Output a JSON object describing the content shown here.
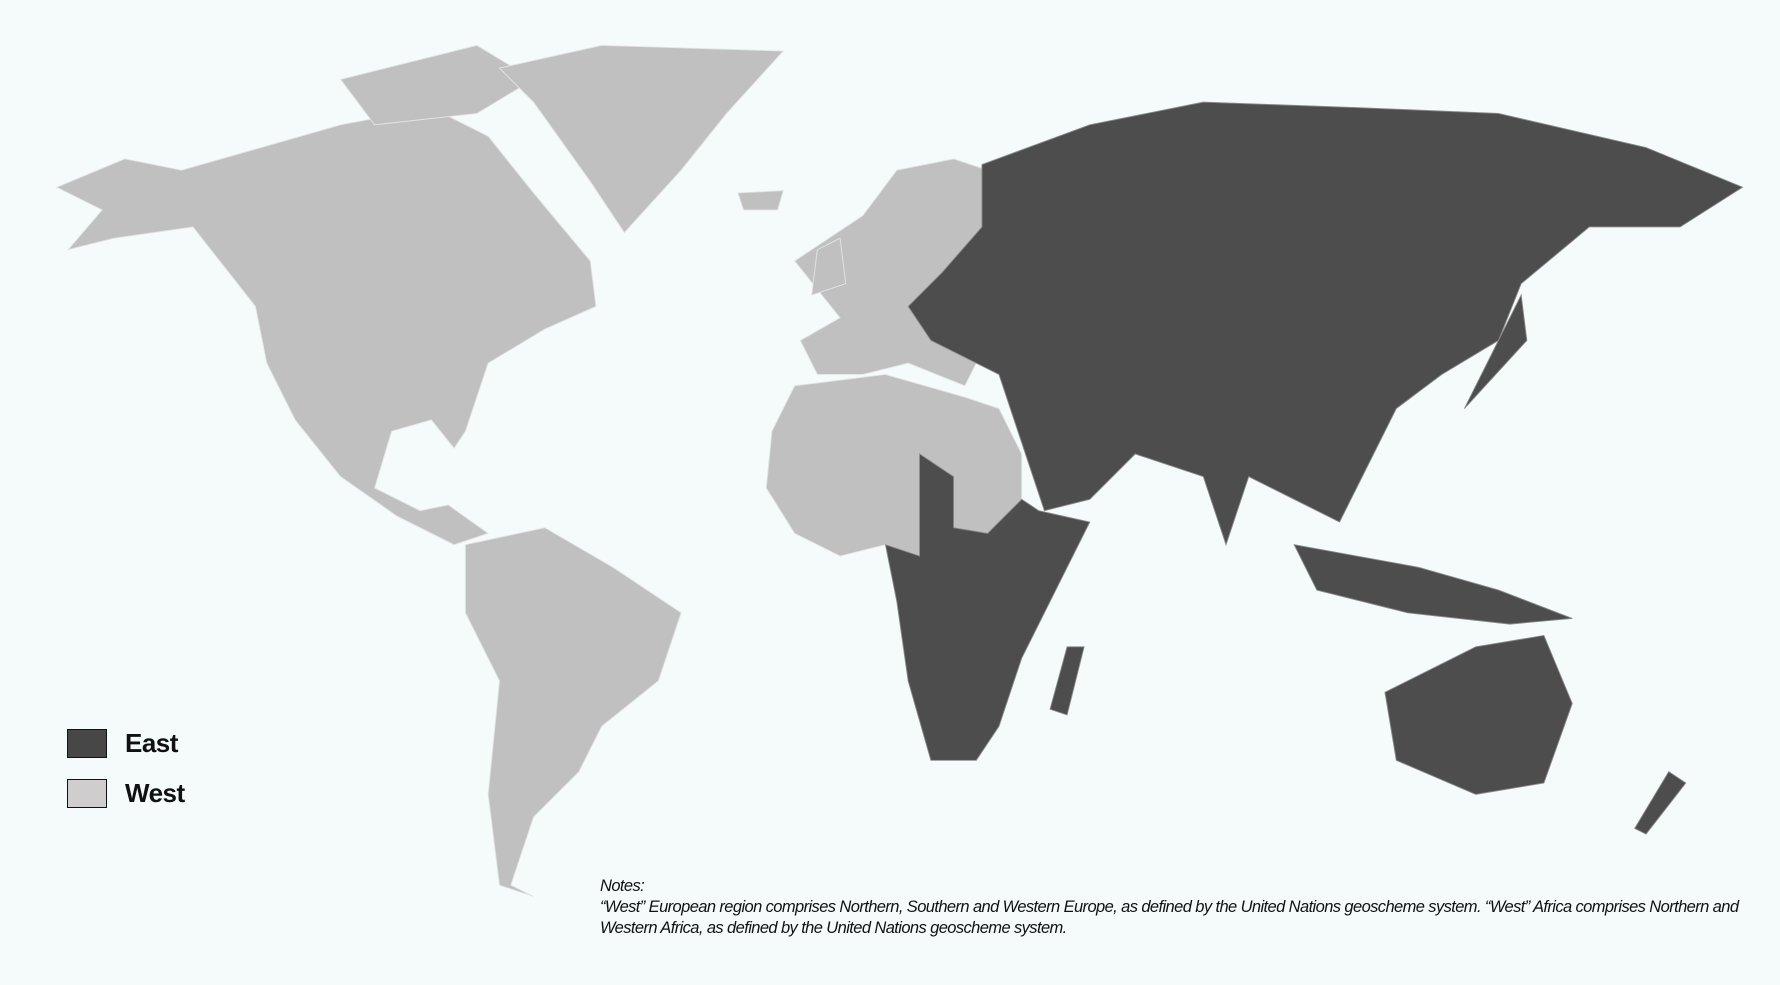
{
  "legend": {
    "items": [
      {
        "label": "East",
        "color": "#474747"
      },
      {
        "label": "West",
        "color": "#d0cdcf"
      }
    ]
  },
  "map": {
    "background": "#f5fbfb",
    "west_fill": "#c0c0c0",
    "east_fill": "#4d4d4d",
    "west_regions": [
      "North America",
      "Greenland",
      "Central America",
      "South America",
      "Northern Europe",
      "Southern Europe",
      "Western Europe",
      "Northern Africa",
      "Western Africa"
    ],
    "east_regions": [
      "Eastern Europe",
      "Russia",
      "Middle East",
      "Central Asia",
      "South Asia",
      "East Asia",
      "Southeast Asia",
      "Central Africa",
      "Eastern Africa",
      "Southern Africa",
      "Oceania"
    ]
  },
  "notes": {
    "heading": "Notes:",
    "text": "“West” European region comprises Northern, Southern and Western Europe, as defined by the United Nations geoscheme system. “West” Africa comprises Northern and Western Africa, as defined by the United Nations geoscheme system."
  }
}
